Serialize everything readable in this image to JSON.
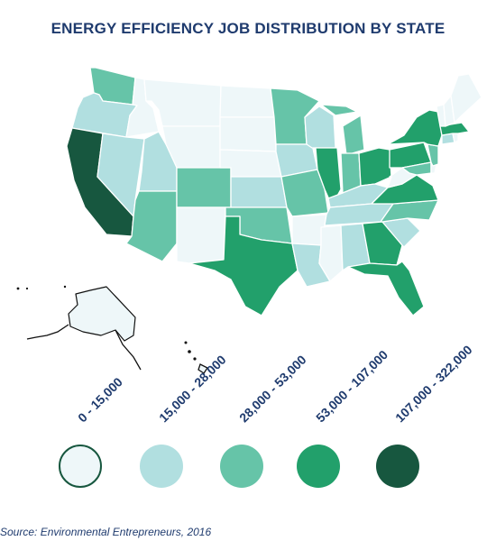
{
  "title": "ENERGY EFFICIENCY JOB DISTRIBUTION BY STATE",
  "source": "Source: Environmental Entrepreneurs, 2016",
  "colors": {
    "c0": "#eef7f9",
    "c1": "#b1dfe0",
    "c2": "#66c4a8",
    "c3": "#22a06b",
    "c4": "#17573f",
    "border": "#222222",
    "title": "#1f3b6e"
  },
  "legend": [
    {
      "label": "0 - 15,000",
      "color_key": "c0"
    },
    {
      "label": "15,000 - 28,000",
      "color_key": "c1"
    },
    {
      "label": "28,000 - 53,000",
      "color_key": "c2"
    },
    {
      "label": "53,000 - 107,000",
      "color_key": "c3"
    },
    {
      "label": "107,000 - 322,000",
      "color_key": "c4"
    }
  ],
  "chart_data": {
    "type": "choropleth",
    "title": "ENERGY EFFICIENCY JOB DISTRIBUTION BY STATE",
    "bins": [
      "0 - 15,000",
      "15,000 - 28,000",
      "28,000 - 53,000",
      "53,000 - 107,000",
      "107,000 - 322,000"
    ],
    "states": {
      "WA": 2,
      "OR": 1,
      "CA": 4,
      "ID": 0,
      "NV": 1,
      "UT": 1,
      "AZ": 2,
      "MT": 0,
      "WY": 0,
      "CO": 2,
      "NM": 0,
      "ND": 0,
      "SD": 0,
      "NE": 0,
      "KS": 1,
      "OK": 2,
      "TX": 3,
      "MN": 2,
      "IA": 1,
      "MO": 2,
      "AR": 0,
      "LA": 1,
      "WI": 1,
      "IL": 3,
      "MI": 2,
      "IN": 2,
      "OH": 3,
      "KY": 1,
      "TN": 1,
      "MS": 0,
      "AL": 1,
      "GA": 3,
      "FL": 3,
      "SC": 1,
      "NC": 2,
      "VA": 3,
      "WV": 0,
      "MD": 2,
      "DE": 0,
      "NJ": 2,
      "PA": 3,
      "NY": 3,
      "CT": 1,
      "RI": 0,
      "MA": 3,
      "VT": 0,
      "NH": 0,
      "ME": 0,
      "AK": 0,
      "HI": 0
    }
  }
}
